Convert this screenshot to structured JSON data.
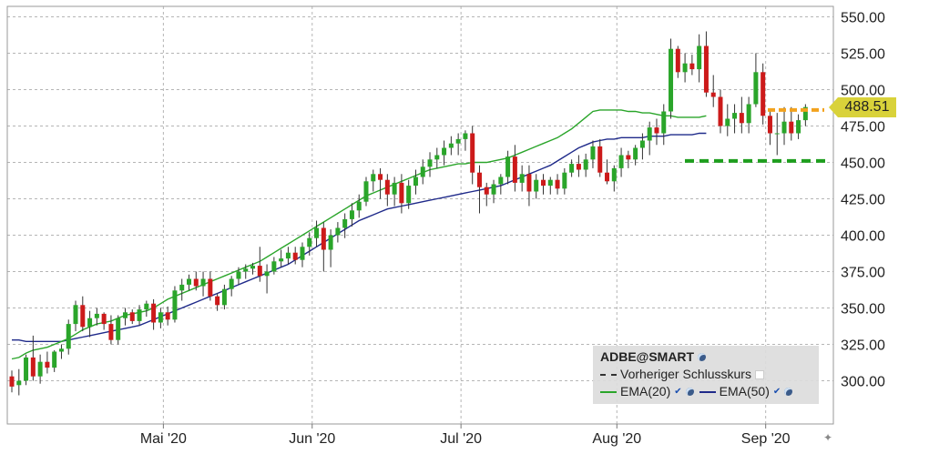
{
  "chart_data": {
    "type": "candlestick",
    "symbol": "ADBE@SMART",
    "ylim": [
      275,
      560
    ],
    "y_ticks": [
      "550.00",
      "525.00",
      "500.00",
      "475.00",
      "450.00",
      "425.00",
      "400.00",
      "375.00",
      "350.00",
      "325.00",
      "300.00"
    ],
    "y_tick_values": [
      550,
      525,
      500,
      475,
      450,
      425,
      400,
      375,
      350,
      325,
      300
    ],
    "x_ticks": [
      "Mai '20",
      "Jun '20",
      "Jul '20",
      "Aug '20",
      "Sep '20"
    ],
    "x_tick_index": [
      21,
      42,
      63,
      85,
      106
    ],
    "last_price": "488.51",
    "previous_close": 486,
    "support_level": 451,
    "candles": [
      [
        303,
        307,
        292,
        296
      ],
      [
        297,
        308,
        290,
        300
      ],
      [
        300,
        318,
        297,
        316
      ],
      [
        316,
        331,
        300,
        303
      ],
      [
        303,
        318,
        298,
        313
      ],
      [
        313,
        320,
        305,
        309
      ],
      [
        309,
        321,
        306,
        320
      ],
      [
        320,
        325,
        315,
        322
      ],
      [
        322,
        342,
        318,
        339
      ],
      [
        339,
        355,
        334,
        352
      ],
      [
        352,
        358,
        334,
        337
      ],
      [
        337,
        348,
        330,
        343
      ],
      [
        343,
        350,
        338,
        346
      ],
      [
        346,
        347,
        335,
        339
      ],
      [
        339,
        345,
        325,
        328
      ],
      [
        328,
        345,
        325,
        343
      ],
      [
        343,
        350,
        338,
        347
      ],
      [
        347,
        349,
        339,
        341
      ],
      [
        341,
        352,
        338,
        349
      ],
      [
        349,
        355,
        344,
        353
      ],
      [
        353,
        356,
        335,
        340
      ],
      [
        340,
        350,
        336,
        347
      ],
      [
        347,
        351,
        338,
        342
      ],
      [
        342,
        365,
        340,
        362
      ],
      [
        362,
        370,
        355,
        366
      ],
      [
        366,
        373,
        362,
        370
      ],
      [
        370,
        375,
        362,
        365
      ],
      [
        365,
        375,
        358,
        370
      ],
      [
        370,
        375,
        355,
        358
      ],
      [
        358,
        360,
        348,
        352
      ],
      [
        352,
        366,
        349,
        363
      ],
      [
        363,
        372,
        358,
        370
      ],
      [
        370,
        378,
        366,
        375
      ],
      [
        375,
        380,
        370,
        377
      ],
      [
        377,
        381,
        373,
        379
      ],
      [
        379,
        392,
        368,
        372
      ],
      [
        372,
        380,
        360,
        375
      ],
      [
        375,
        385,
        373,
        382
      ],
      [
        382,
        390,
        378,
        384
      ],
      [
        384,
        392,
        380,
        388
      ],
      [
        388,
        392,
        380,
        383
      ],
      [
        383,
        395,
        378,
        392
      ],
      [
        392,
        402,
        386,
        398
      ],
      [
        398,
        410,
        392,
        405
      ],
      [
        405,
        409,
        375,
        390
      ],
      [
        390,
        404,
        378,
        400
      ],
      [
        400,
        409,
        395,
        405
      ],
      [
        405,
        415,
        398,
        411
      ],
      [
        411,
        422,
        406,
        417
      ],
      [
        417,
        428,
        412,
        423
      ],
      [
        423,
        440,
        420,
        437
      ],
      [
        437,
        445,
        430,
        442
      ],
      [
        442,
        446,
        425,
        438
      ],
      [
        438,
        442,
        420,
        428
      ],
      [
        428,
        440,
        420,
        436
      ],
      [
        436,
        442,
        415,
        422
      ],
      [
        422,
        438,
        418,
        434
      ],
      [
        434,
        445,
        428,
        440
      ],
      [
        440,
        452,
        435,
        447
      ],
      [
        447,
        457,
        440,
        452
      ],
      [
        452,
        460,
        446,
        455
      ],
      [
        455,
        465,
        448,
        460
      ],
      [
        460,
        468,
        455,
        463
      ],
      [
        463,
        470,
        455,
        466
      ],
      [
        466,
        472,
        458,
        470
      ],
      [
        470,
        475,
        435,
        443
      ],
      [
        443,
        448,
        415,
        433
      ],
      [
        433,
        436,
        420,
        428
      ],
      [
        428,
        438,
        422,
        435
      ],
      [
        435,
        442,
        428,
        440
      ],
      [
        440,
        458,
        435,
        454
      ],
      [
        454,
        462,
        430,
        436
      ],
      [
        436,
        448,
        430,
        442
      ],
      [
        442,
        448,
        420,
        430
      ],
      [
        430,
        442,
        425,
        438
      ],
      [
        438,
        442,
        428,
        434
      ],
      [
        434,
        440,
        428,
        438
      ],
      [
        438,
        442,
        428,
        432
      ],
      [
        432,
        446,
        428,
        443
      ],
      [
        443,
        452,
        440,
        449
      ],
      [
        449,
        455,
        440,
        445
      ],
      [
        445,
        456,
        440,
        452
      ],
      [
        452,
        465,
        446,
        461
      ],
      [
        461,
        466,
        440,
        443
      ],
      [
        443,
        452,
        435,
        437
      ],
      [
        437,
        448,
        430,
        446
      ],
      [
        446,
        460,
        440,
        455
      ],
      [
        455,
        458,
        446,
        452
      ],
      [
        452,
        462,
        448,
        460
      ],
      [
        460,
        470,
        452,
        465
      ],
      [
        465,
        478,
        455,
        474
      ],
      [
        474,
        480,
        462,
        470
      ],
      [
        470,
        490,
        462,
        485
      ],
      [
        485,
        535,
        480,
        528
      ],
      [
        528,
        530,
        508,
        512
      ],
      [
        512,
        525,
        505,
        518
      ],
      [
        518,
        524,
        510,
        514
      ],
      [
        514,
        538,
        505,
        530
      ],
      [
        530,
        540,
        495,
        498
      ],
      [
        498,
        510,
        488,
        495
      ],
      [
        495,
        500,
        470,
        475
      ],
      [
        475,
        490,
        468,
        480
      ],
      [
        480,
        490,
        470,
        484
      ],
      [
        484,
        495,
        470,
        477
      ],
      [
        477,
        495,
        470,
        490
      ],
      [
        490,
        525,
        488,
        512
      ],
      [
        512,
        518,
        476,
        482
      ],
      [
        482,
        485,
        462,
        470
      ],
      [
        470,
        484,
        455,
        470
      ],
      [
        470,
        488,
        462,
        478
      ],
      [
        478,
        488,
        465,
        470
      ],
      [
        470,
        483,
        466,
        479
      ],
      [
        479,
        490,
        475,
        488
      ]
    ],
    "ema20": [
      315,
      316,
      319,
      321,
      322,
      323,
      325,
      327,
      329,
      332,
      335,
      337,
      339,
      340,
      341,
      343,
      345,
      346,
      347,
      348,
      350,
      353,
      356,
      358,
      360,
      362,
      364,
      366,
      368,
      370,
      372,
      374,
      376,
      378,
      380,
      382,
      385,
      388,
      391,
      394,
      397,
      400,
      403,
      406,
      409,
      412,
      415,
      418,
      421,
      424,
      427,
      429,
      431,
      433,
      435,
      437,
      439,
      441,
      443,
      445,
      446,
      447,
      448,
      449,
      449,
      450,
      450,
      450,
      451,
      452,
      453,
      455,
      457,
      459,
      461,
      463,
      465,
      467,
      470,
      473,
      477,
      481,
      485,
      486,
      486,
      486,
      486,
      485,
      485,
      484,
      484,
      483,
      482,
      482,
      481,
      481,
      481,
      481,
      482
    ],
    "ema50": [
      328,
      328,
      327,
      327,
      327,
      327,
      327,
      327,
      328,
      329,
      330,
      331,
      332,
      333,
      334,
      335,
      336,
      337,
      338,
      340,
      342,
      344,
      346,
      348,
      350,
      352,
      354,
      356,
      358,
      360,
      362,
      364,
      366,
      368,
      370,
      372,
      374,
      376,
      378,
      380,
      383,
      386,
      389,
      392,
      395,
      398,
      401,
      404,
      407,
      410,
      412,
      414,
      416,
      418,
      419,
      420,
      421,
      422,
      423,
      424,
      425,
      426,
      427,
      428,
      429,
      430,
      431,
      432,
      433,
      434,
      436,
      438,
      440,
      442,
      444,
      446,
      448,
      451,
      454,
      457,
      460,
      462,
      464,
      465,
      466,
      466,
      467,
      467,
      467,
      467,
      468,
      468,
      468,
      469,
      469,
      469,
      469,
      470,
      470
    ],
    "legend": {
      "title": "ADBE@SMART",
      "prev_close_label": "Vorheriger Schlusskurs",
      "ema20_label": "EMA(20)",
      "ema50_label": "EMA(50)"
    },
    "colors": {
      "up": "#2aa52a",
      "down": "#cc1a1a",
      "ema20": "#2aa52a",
      "ema50": "#1f2a8a",
      "support": "#1e9e1e",
      "prev_close": "#f2a21e",
      "badge": "#d9d23a"
    }
  }
}
